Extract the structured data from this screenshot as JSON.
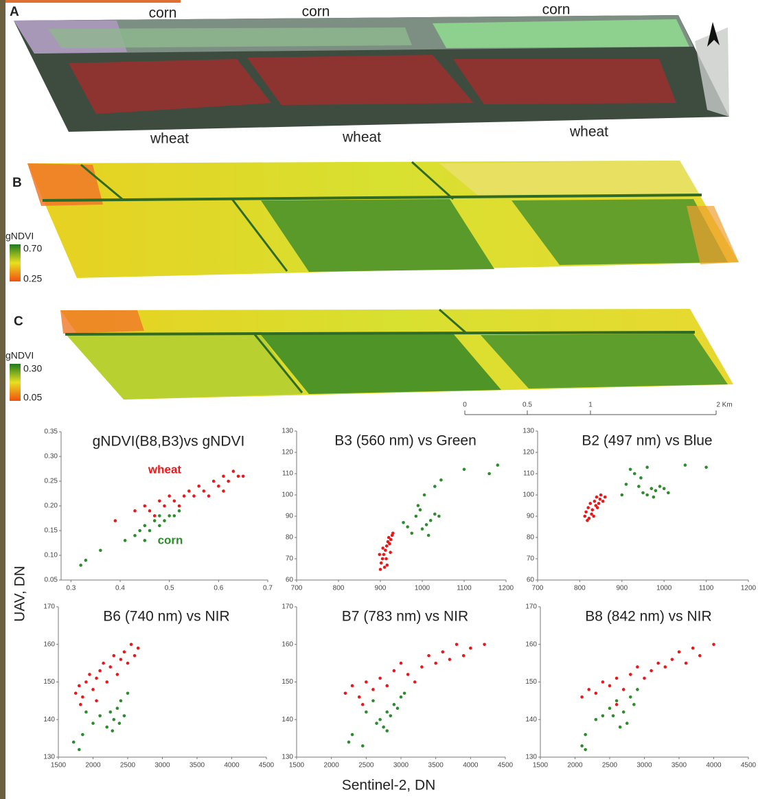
{
  "maps": {
    "A": {
      "letter": "A",
      "labels": [
        "corn",
        "corn",
        "corn",
        "wheat",
        "wheat",
        "wheat"
      ]
    },
    "B": {
      "letter": "B",
      "legend_title": "gNDVI",
      "legend_max": "0.70",
      "legend_min": "0.25"
    },
    "C": {
      "letter": "C",
      "legend_title": "gNDVI",
      "legend_max": "0.30",
      "legend_min": "0.05"
    },
    "scale_bar": [
      "0",
      "0.5",
      "1",
      "2 Km"
    ]
  },
  "ylabel": "UAV, DN",
  "xlabel": "Sentinel-2, DN",
  "chart_data": [
    {
      "type": "scatter",
      "title": "gNDVI(B8,B3)vs gNDVI",
      "xlim": [
        0.28,
        0.7
      ],
      "xticks": [
        0.3,
        0.4,
        0.5,
        0.6,
        0.7
      ],
      "ylim": [
        0.05,
        0.35
      ],
      "yticks": [
        0.05,
        {
          "value": 0.1,
          "label": "0.10"
        },
        0.15,
        {
          "value": 0.2,
          "label": "0.20"
        },
        0.25,
        {
          "value": 0.3,
          "label": "0.30"
        },
        0.35
      ],
      "series": [
        {
          "name": "wheat",
          "color": "#e8191c",
          "x": [
            0.43,
            0.45,
            0.46,
            0.48,
            0.49,
            0.5,
            0.51,
            0.52,
            0.54,
            0.55,
            0.56,
            0.57,
            0.58,
            0.59,
            0.6,
            0.61,
            0.62,
            0.63,
            0.64,
            0.61,
            0.47,
            0.53,
            0.39,
            0.65
          ],
          "values": [
            0.19,
            0.2,
            0.19,
            0.21,
            0.2,
            0.22,
            0.21,
            0.2,
            0.23,
            0.22,
            0.24,
            0.23,
            0.22,
            0.25,
            0.24,
            0.26,
            0.25,
            0.27,
            0.26,
            0.23,
            0.18,
            0.22,
            0.17,
            0.26
          ]
        },
        {
          "name": "corn",
          "color": "#2e8b2e",
          "x": [
            0.32,
            0.33,
            0.36,
            0.41,
            0.43,
            0.44,
            0.45,
            0.46,
            0.47,
            0.48,
            0.49,
            0.5,
            0.51,
            0.52,
            0.45,
            0.48
          ],
          "values": [
            0.08,
            0.09,
            0.11,
            0.13,
            0.14,
            0.15,
            0.16,
            0.15,
            0.17,
            0.16,
            0.17,
            0.18,
            0.18,
            0.19,
            0.13,
            0.18
          ]
        }
      ]
    },
    {
      "type": "scatter",
      "title": "B3 (560 nm) vs Green",
      "xlim": [
        700,
        1200
      ],
      "xticks": [
        700,
        800,
        900,
        1000,
        1100,
        1200
      ],
      "ylim": [
        60,
        130
      ],
      "yticks": [
        60,
        70,
        80,
        90,
        100,
        110,
        120,
        130
      ],
      "series": [
        {
          "color": "#e8191c",
          "x": [
            900,
            902,
            905,
            908,
            910,
            912,
            915,
            918,
            920,
            922,
            925,
            928,
            906,
            914,
            898,
            916,
            924,
            930
          ],
          "values": [
            65,
            68,
            70,
            72,
            66,
            74,
            76,
            78,
            80,
            77,
            79,
            81,
            75,
            70,
            72,
            67,
            73,
            82
          ]
        },
        {
          "color": "#2e8b2e",
          "x": [
            955,
            965,
            975,
            985,
            990,
            995,
            1000,
            1010,
            1020,
            1030,
            1040,
            1005,
            1030,
            1045,
            1100,
            1160,
            1180,
            1015
          ],
          "values": [
            87,
            85,
            82,
            90,
            95,
            93,
            84,
            86,
            88,
            91,
            90,
            100,
            104,
            107,
            112,
            110,
            114,
            81
          ]
        }
      ]
    },
    {
      "type": "scatter",
      "title": "B2 (497 nm) vs Blue",
      "xlim": [
        700,
        1200
      ],
      "xticks": [
        700,
        800,
        900,
        1000,
        1100,
        1200
      ],
      "ylim": [
        60,
        130
      ],
      "yticks": [
        60,
        70,
        80,
        90,
        100,
        110,
        120,
        130
      ],
      "series": [
        {
          "color": "#e8191c",
          "x": [
            812,
            815,
            818,
            820,
            825,
            828,
            830,
            835,
            838,
            840,
            845,
            848,
            850,
            855,
            860,
            822,
            833,
            842
          ],
          "values": [
            90,
            92,
            88,
            94,
            96,
            91,
            93,
            97,
            95,
            99,
            96,
            98,
            100,
            97,
            99,
            89,
            90,
            94
          ]
        },
        {
          "color": "#2e8b2e",
          "x": [
            900,
            910,
            920,
            930,
            940,
            950,
            960,
            970,
            980,
            990,
            1000,
            1010,
            945,
            960,
            1050,
            1100,
            975
          ],
          "values": [
            100,
            105,
            112,
            110,
            104,
            101,
            100,
            103,
            102,
            104,
            103,
            101,
            108,
            113,
            114,
            113,
            99
          ]
        }
      ]
    },
    {
      "type": "scatter",
      "title": "B6 (740 nm) vs NIR",
      "xlim": [
        1500,
        4500
      ],
      "xticks": [
        1500,
        2000,
        2500,
        3000,
        3500,
        4000,
        4500
      ],
      "ylim": [
        130,
        170
      ],
      "yticks": [
        130,
        140,
        150,
        160,
        170
      ],
      "series": [
        {
          "color": "#e8191c",
          "x": [
            1750,
            1800,
            1850,
            1900,
            1950,
            2000,
            2050,
            2100,
            2150,
            2200,
            2250,
            2300,
            2350,
            2400,
            2450,
            2500,
            2550,
            2600,
            2650,
            1820,
            2050
          ],
          "values": [
            147,
            149,
            146,
            150,
            152,
            148,
            151,
            153,
            155,
            150,
            154,
            157,
            152,
            156,
            158,
            155,
            160,
            157,
            159,
            144,
            145
          ]
        },
        {
          "color": "#2e8b2e",
          "x": [
            1720,
            1850,
            1900,
            2000,
            2100,
            2200,
            2250,
            2300,
            2350,
            2400,
            2450,
            2500,
            2280,
            2380,
            1800
          ],
          "values": [
            134,
            136,
            142,
            139,
            141,
            138,
            142,
            140,
            143,
            145,
            141,
            147,
            137,
            139,
            132
          ]
        }
      ]
    },
    {
      "type": "scatter",
      "title": "B7 (783 nm) vs NIR",
      "xlim": [
        1500,
        4500
      ],
      "xticks": [
        1500,
        2000,
        2500,
        3000,
        3500,
        4000,
        4500
      ],
      "ylim": [
        130,
        170
      ],
      "yticks": [
        130,
        140,
        150,
        160,
        170
      ],
      "series": [
        {
          "color": "#e8191c",
          "x": [
            2200,
            2300,
            2400,
            2500,
            2600,
            2700,
            2800,
            2900,
            3000,
            3100,
            3200,
            3300,
            3400,
            3500,
            3600,
            3700,
            3800,
            3900,
            4000,
            4200,
            2450
          ],
          "values": [
            147,
            149,
            146,
            150,
            148,
            151,
            149,
            153,
            155,
            152,
            150,
            154,
            157,
            155,
            158,
            156,
            160,
            157,
            159,
            160,
            144
          ]
        },
        {
          "color": "#2e8b2e",
          "x": [
            2250,
            2300,
            2500,
            2600,
            2700,
            2750,
            2800,
            2850,
            2900,
            2950,
            3000,
            3050,
            2650,
            2800,
            2450
          ],
          "values": [
            134,
            136,
            142,
            145,
            140,
            138,
            142,
            141,
            144,
            143,
            146,
            147,
            139,
            137,
            133
          ]
        }
      ]
    },
    {
      "type": "scatter",
      "title": "B8 (842 nm) vs NIR",
      "xlim": [
        1500,
        4500
      ],
      "xticks": [
        1500,
        2000,
        2500,
        3000,
        3500,
        4000,
        4500
      ],
      "ylim": [
        130,
        170
      ],
      "yticks": [
        130,
        140,
        150,
        160,
        170
      ],
      "series": [
        {
          "color": "#e8191c",
          "x": [
            2100,
            2200,
            2300,
            2400,
            2500,
            2600,
            2700,
            2800,
            2900,
            3000,
            3100,
            3200,
            3300,
            3400,
            3500,
            3600,
            3700,
            3800,
            4000,
            2600
          ],
          "values": [
            146,
            148,
            147,
            150,
            149,
            151,
            148,
            152,
            154,
            151,
            153,
            155,
            154,
            156,
            158,
            155,
            159,
            157,
            160,
            144
          ]
        },
        {
          "color": "#2e8b2e",
          "x": [
            2100,
            2150,
            2300,
            2400,
            2500,
            2600,
            2700,
            2750,
            2800,
            2850,
            2900,
            2650,
            2550,
            2150
          ],
          "values": [
            133,
            136,
            140,
            141,
            143,
            145,
            142,
            139,
            146,
            144,
            148,
            138,
            141,
            132
          ]
        }
      ]
    }
  ]
}
